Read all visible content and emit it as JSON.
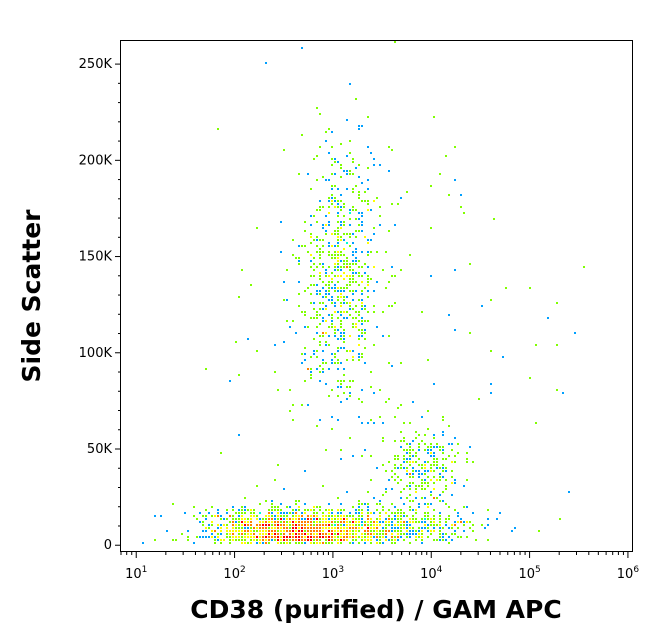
{
  "chart_data": {
    "type": "scatter",
    "subtype": "flow-cytometry density dot plot",
    "xlabel": "CD38 (purified) / GAM APC",
    "ylabel": "Side Scatter",
    "x_scale": "log",
    "xlim": [
      7,
      1100000
    ],
    "ylim": [
      -3000,
      262000
    ],
    "x_ticks": [
      {
        "value": 10,
        "base": "10",
        "exp": "1"
      },
      {
        "value": 100,
        "base": "10",
        "exp": "2"
      },
      {
        "value": 1000,
        "base": "10",
        "exp": "3"
      },
      {
        "value": 10000,
        "base": "10",
        "exp": "4"
      },
      {
        "value": 100000,
        "base": "10",
        "exp": "5"
      },
      {
        "value": 1000000,
        "base": "10",
        "exp": "6"
      }
    ],
    "y_ticks": [
      {
        "value": 0,
        "label": "0"
      },
      {
        "value": 50000,
        "label": "50K"
      },
      {
        "value": 100000,
        "label": "100K"
      },
      {
        "value": 150000,
        "label": "150K"
      },
      {
        "value": 200000,
        "label": "200K"
      },
      {
        "value": 250000,
        "label": "250K"
      }
    ],
    "populations": [
      {
        "x_center": 400,
        "y_center": 8000,
        "x_sd_decades": 0.45,
        "y_sd": 5500,
        "weight": 0.5
      },
      {
        "x_center": 1200,
        "y_center": 140000,
        "x_sd_decades": 0.2,
        "y_sd": 33000,
        "weight": 0.22
      },
      {
        "x_center": 8000,
        "y_center": 38000,
        "x_sd_decades": 0.2,
        "y_sd": 11000,
        "weight": 0.1
      },
      {
        "x_center": 4000,
        "y_center": 10000,
        "x_sd_decades": 0.45,
        "y_sd": 4500,
        "weight": 0.13
      },
      {
        "x_center": 3000,
        "y_center": 100000,
        "x_sd_decades": 0.9,
        "y_sd": 70000,
        "weight": 0.05
      }
    ],
    "density_colors": [
      "#0000ff",
      "#00a0ff",
      "#00ffd0",
      "#80ff00",
      "#ffff00",
      "#ff8000",
      "#ff0000"
    ],
    "grid": false,
    "legend": "none"
  }
}
